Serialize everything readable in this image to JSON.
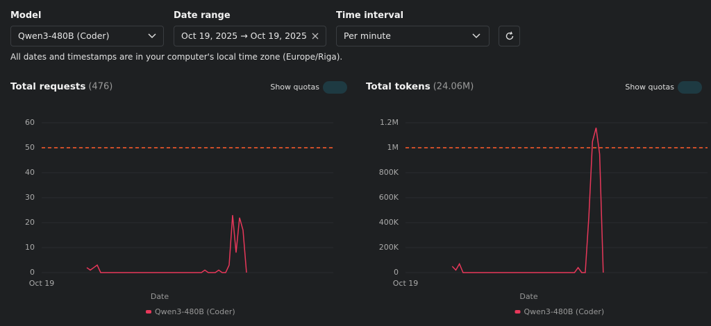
{
  "controls": {
    "model": {
      "label": "Model",
      "value": "Qwen3-480B (Coder)"
    },
    "date_range": {
      "label": "Date range",
      "value": "Oct 19, 2025 → Oct 19, 2025"
    },
    "time_interval": {
      "label": "Time interval",
      "value": "Per minute"
    }
  },
  "note": "All dates and timestamps are in your computer's local time zone (Europe/Riga).",
  "chart_data": [
    {
      "type": "line",
      "title": "Total requests",
      "title_count": "(476)",
      "toggle_label": "Show quotas",
      "xlabel": "Date",
      "quota": 50,
      "quota_color": "#e8552a",
      "categories": [
        "Oct 19",
        null,
        null,
        null,
        null,
        null,
        null,
        null,
        null,
        null,
        null,
        null,
        null,
        null,
        null,
        null,
        null,
        null,
        null,
        null,
        null,
        null,
        null,
        null,
        null,
        null,
        null,
        null,
        null,
        null,
        null,
        null,
        null,
        null,
        null,
        null,
        null,
        null,
        null,
        null,
        null,
        null,
        null,
        null,
        null,
        null,
        null,
        null,
        null,
        null,
        null,
        null,
        null,
        null,
        null,
        null,
        null,
        null,
        null,
        null,
        null,
        null,
        null,
        null,
        null,
        null,
        null,
        null,
        null,
        null,
        null,
        null,
        null,
        null,
        null,
        null,
        null,
        null,
        null,
        null,
        null,
        null,
        null,
        null,
        null
      ],
      "series": [
        {
          "name": "Qwen3-480B (Coder)",
          "color": "#e8385a",
          "values": [
            null,
            null,
            null,
            null,
            null,
            null,
            null,
            null,
            null,
            null,
            null,
            null,
            null,
            2,
            1,
            2,
            3,
            0,
            0,
            0,
            0,
            0,
            0,
            0,
            0,
            0,
            0,
            0,
            0,
            0,
            0,
            0,
            0,
            0,
            0,
            0,
            0,
            0,
            0,
            0,
            0,
            0,
            0,
            0,
            0,
            0,
            0,
            1,
            0,
            0,
            0,
            1,
            0,
            0,
            3,
            23,
            8,
            22,
            17,
            0,
            null,
            null,
            null,
            null,
            null,
            null,
            null,
            null,
            null,
            null,
            null,
            null,
            null,
            null,
            null,
            null,
            null,
            null,
            null,
            null,
            null,
            null,
            null,
            null,
            null
          ]
        }
      ],
      "ylim": [
        0,
        60
      ],
      "yticks": [
        0,
        10,
        20,
        30,
        40,
        50,
        60
      ],
      "grid": true
    },
    {
      "type": "line",
      "title": "Total tokens",
      "title_count": "(24.06M)",
      "toggle_label": "Show quotas",
      "xlabel": "Date",
      "quota": 1000000,
      "quota_color": "#e8552a",
      "categories": [
        "Oct 19",
        null,
        null,
        null,
        null,
        null,
        null,
        null,
        null,
        null,
        null,
        null,
        null,
        null,
        null,
        null,
        null,
        null,
        null,
        null,
        null,
        null,
        null,
        null,
        null,
        null,
        null,
        null,
        null,
        null,
        null,
        null,
        null,
        null,
        null,
        null,
        null,
        null,
        null,
        null,
        null,
        null,
        null,
        null,
        null,
        null,
        null,
        null,
        null,
        null,
        null,
        null,
        null,
        null,
        null,
        null,
        null,
        null,
        null,
        null,
        null,
        null,
        null,
        null,
        null,
        null,
        null,
        null,
        null,
        null,
        null,
        null,
        null,
        null,
        null,
        null,
        null,
        null,
        null,
        null,
        null,
        null,
        null,
        null,
        null
      ],
      "series": [
        {
          "name": "Qwen3-480B (Coder)",
          "color": "#e8385a",
          "values": [
            null,
            null,
            null,
            null,
            null,
            null,
            null,
            null,
            null,
            null,
            null,
            null,
            null,
            50000,
            20000,
            70000,
            0,
            0,
            0,
            0,
            0,
            0,
            0,
            0,
            0,
            0,
            0,
            0,
            0,
            0,
            0,
            0,
            0,
            0,
            0,
            0,
            0,
            0,
            0,
            0,
            0,
            0,
            0,
            0,
            0,
            0,
            0,
            0,
            40000,
            0,
            0,
            450000,
            1050000,
            1160000,
            950000,
            0,
            null,
            null,
            null,
            null,
            null,
            null,
            null,
            null,
            null,
            null,
            null,
            null,
            null,
            null,
            null,
            null,
            null,
            null,
            null,
            null,
            null,
            null,
            null,
            null,
            null,
            null,
            null,
            null,
            null
          ]
        }
      ],
      "ylim": [
        0,
        1200000
      ],
      "yticks": [
        0,
        {
          "value": 200000,
          "label": "200K"
        },
        {
          "value": 400000,
          "label": "400K"
        },
        {
          "value": 600000,
          "label": "600K"
        },
        {
          "value": 800000,
          "label": "800K"
        },
        {
          "value": 1000000,
          "label": "1M"
        },
        {
          "value": 1200000,
          "label": "1.2M"
        }
      ],
      "grid": true
    }
  ]
}
